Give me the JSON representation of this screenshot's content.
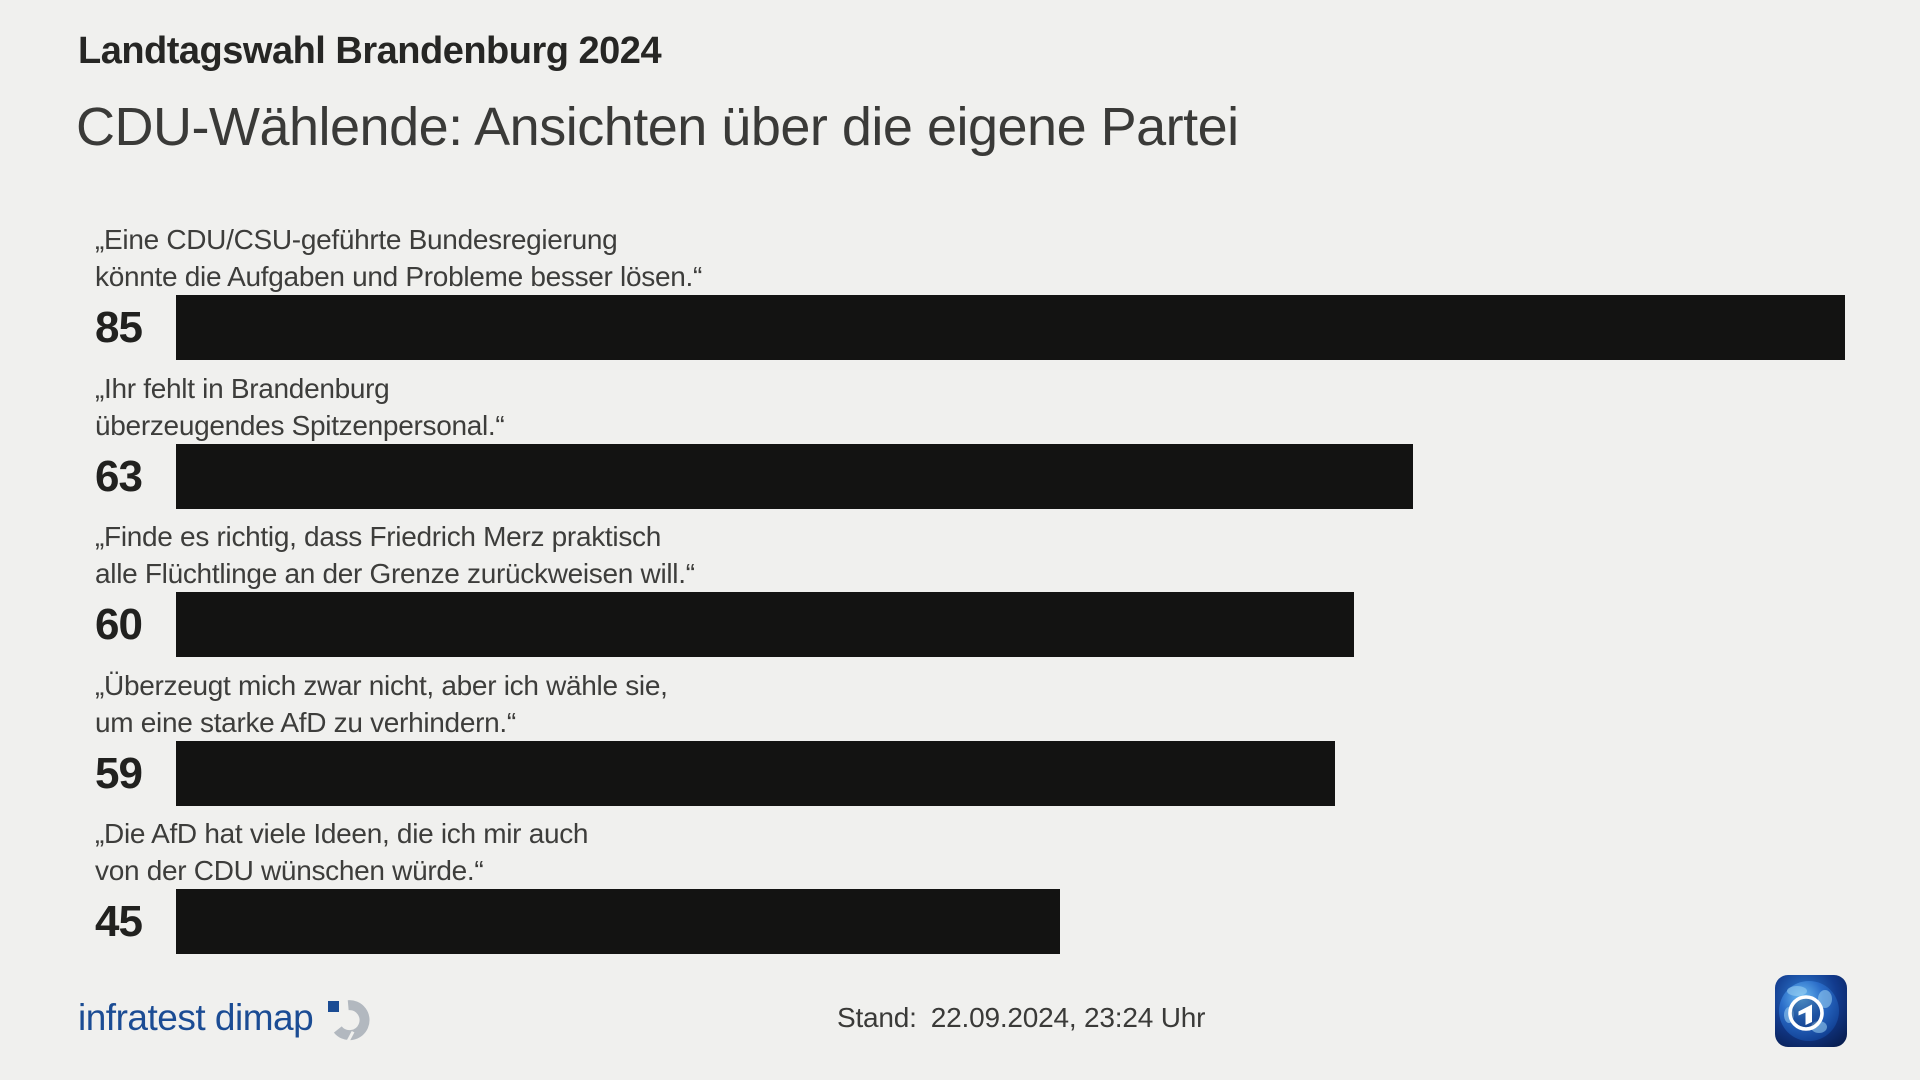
{
  "header": {
    "kicker": "Landtagswahl Brandenburg 2024",
    "title": "CDU-Wählende: Ansichten über die eigene Partei"
  },
  "chart_data": {
    "type": "bar",
    "orientation": "horizontal",
    "title": "CDU-Wählende: Ansichten über die eigene Partei",
    "value_unit": "percent_agreement",
    "xlim": [
      0,
      100
    ],
    "grid": false,
    "legend": false,
    "bar_color": "#131312",
    "categories": [
      "„Eine CDU/CSU-geführte Bundesregierung könnte die Aufgaben und Probleme besser lösen.“",
      "„Ihr fehlt in Brandenburg überzeugendes Spitzenpersonal.“",
      "„Finde es richtig, dass Friedrich Merz praktisch alle Flüchtlinge an der Grenze zurückweisen will.“",
      "„Überzeugt mich zwar nicht, aber ich wähle sie, um eine starke AfD zu verhindern.“",
      "„Die AfD hat viele Ideen, die ich mir auch von der CDU wünschen würde.“"
    ],
    "values": [
      85,
      63,
      60,
      59,
      45
    ],
    "items": [
      {
        "line1": "„Eine CDU/CSU-geführte Bundesregierung",
        "line2": "könnte die Aufgaben und Probleme besser lösen.“",
        "value": 85
      },
      {
        "line1": "„Ihr fehlt in Brandenburg",
        "line2": "überzeugendes Spitzenpersonal.“",
        "value": 63
      },
      {
        "line1": "„Finde es richtig, dass Friedrich Merz praktisch",
        "line2": "alle Flüchtlinge an der Grenze zurückweisen will.“",
        "value": 60
      },
      {
        "line1": "„Überzeugt mich zwar nicht, aber ich wähle sie,",
        "line2": "um eine starke AfD zu verhindern.“",
        "value": 59
      },
      {
        "line1": "„Die AfD hat viele Ideen, die ich mir auch",
        "line2": "von der CDU wünschen würde.“",
        "value": 45
      }
    ]
  },
  "footer": {
    "stand_label": "Stand:",
    "stand_value": "22.09.2024, 23:24 Uhr"
  },
  "branding": {
    "infratest_label": "infratest dimap",
    "ard_logo_name": "ard-das-erste-logo"
  },
  "colors": {
    "background": "#f0f0ee",
    "bar": "#131312",
    "kicker_text": "#262624",
    "title_text": "#3a3a38",
    "label_text": "#3d3d3b",
    "value_text": "#21211f",
    "footer_text": "#3a3a38",
    "infratest_blue": "#1b4c94",
    "infratest_gray": "#b2b8bf"
  }
}
